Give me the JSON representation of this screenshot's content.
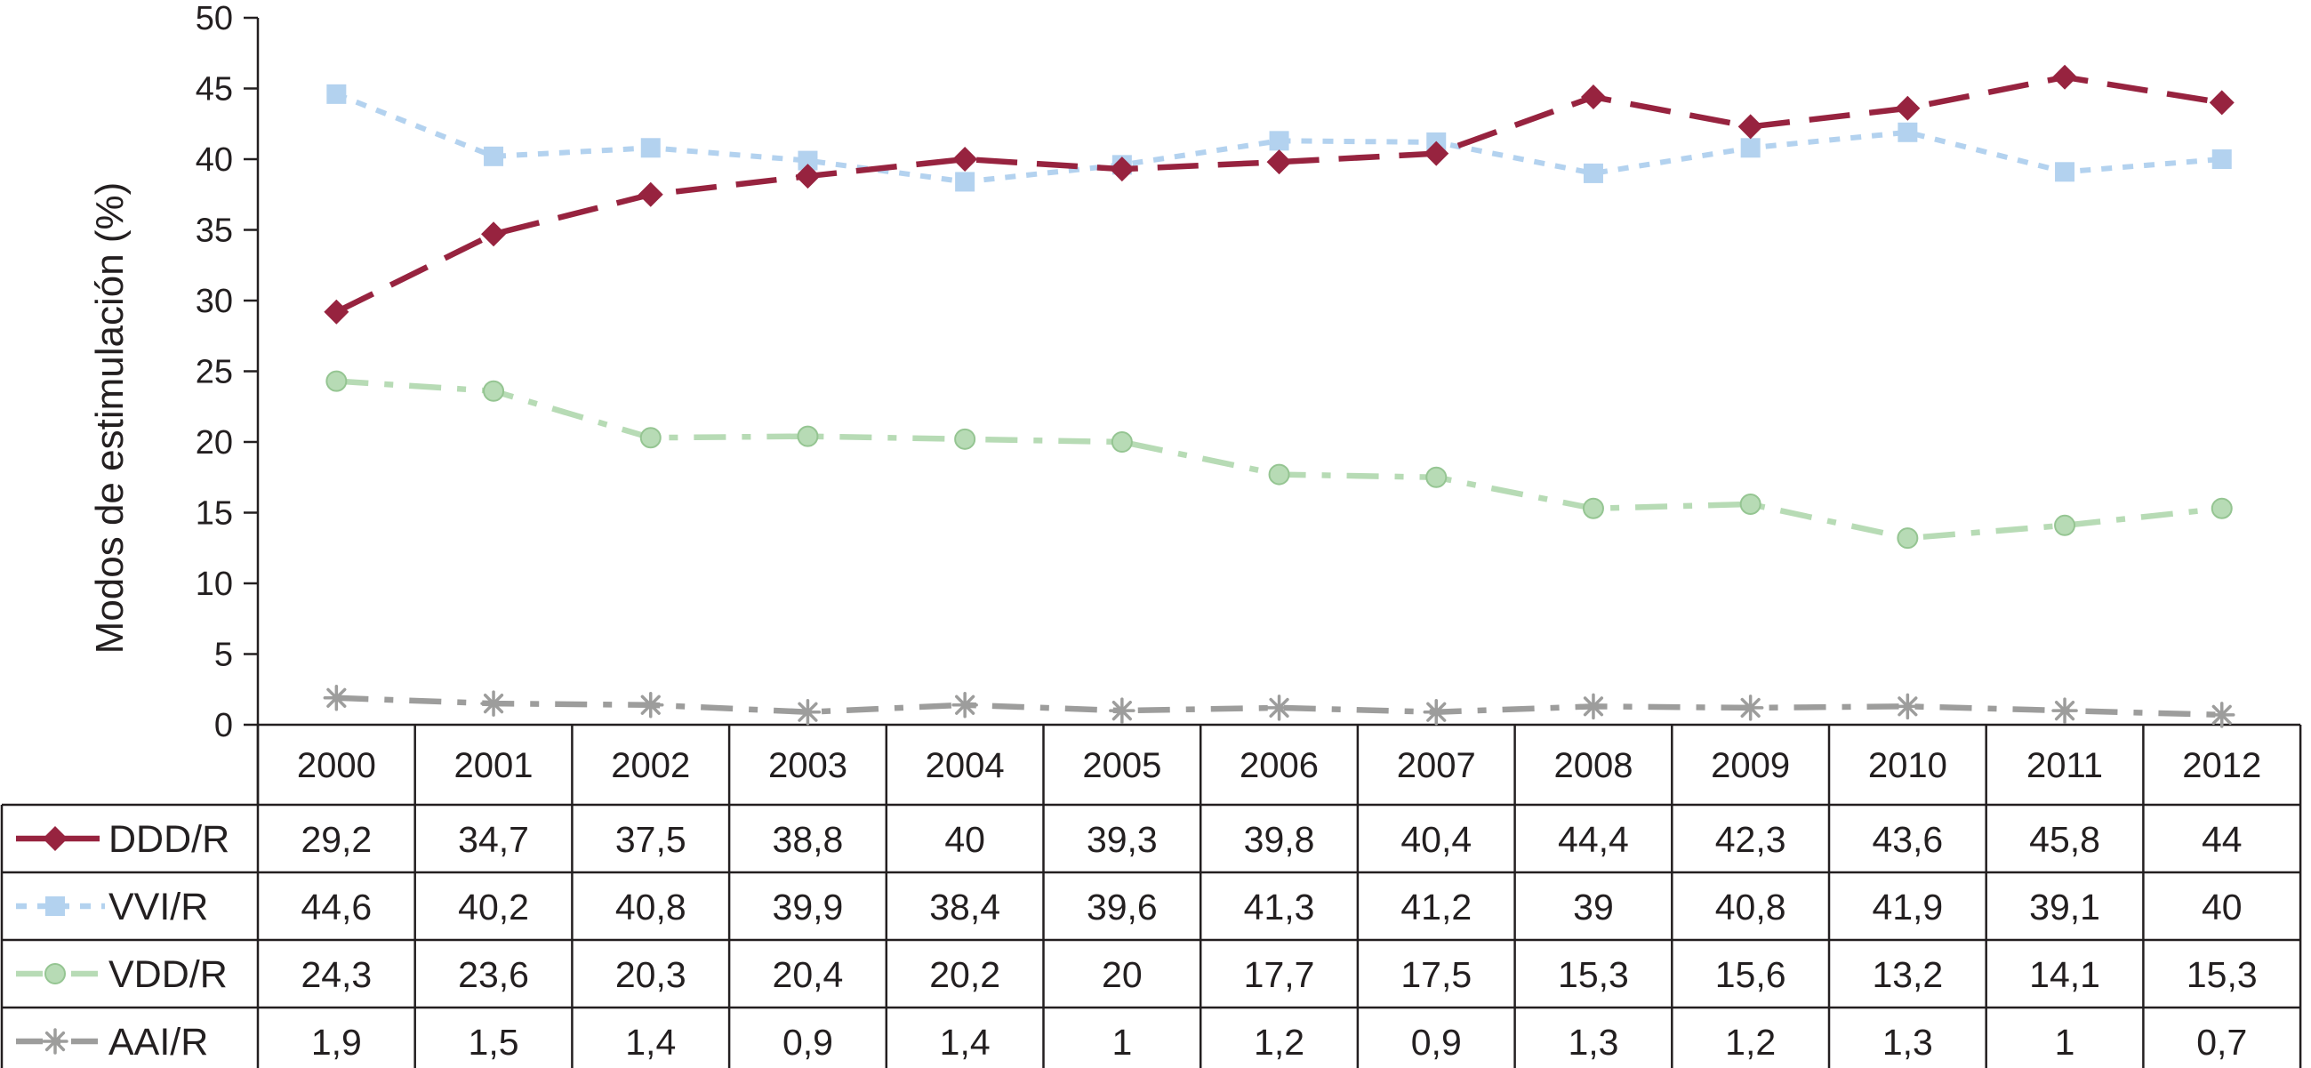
{
  "chart_data": {
    "type": "line",
    "ylabel": "Modos de estimulación (%)",
    "xlabel": "",
    "ylim": [
      0,
      50
    ],
    "yticks": [
      0,
      5,
      10,
      15,
      20,
      25,
      30,
      35,
      40,
      45,
      50
    ],
    "grid": false,
    "legend_placement": "data-table-left",
    "categories": [
      "2000",
      "2001",
      "2002",
      "2003",
      "2004",
      "2005",
      "2006",
      "2007",
      "2008",
      "2009",
      "2010",
      "2011",
      "2012"
    ],
    "series": [
      {
        "name": "DDD/R",
        "color": "#97233f",
        "marker": "diamond",
        "dash": "long-dash",
        "values": [
          29.2,
          34.7,
          37.5,
          38.8,
          40,
          39.3,
          39.8,
          40.4,
          44.4,
          42.3,
          43.6,
          45.8,
          44
        ],
        "labels": [
          "29,2",
          "34,7",
          "37,5",
          "38,8",
          "40",
          "39,3",
          "39,8",
          "40,4",
          "44,4",
          "42,3",
          "43,6",
          "45,8",
          "44"
        ]
      },
      {
        "name": "VVI/R",
        "color": "#b3d2ef",
        "marker": "square",
        "dash": "dotted",
        "values": [
          44.6,
          40.2,
          40.8,
          39.9,
          38.4,
          39.6,
          41.3,
          41.2,
          39,
          40.8,
          41.9,
          39.1,
          40
        ],
        "labels": [
          "44,6",
          "40,2",
          "40,8",
          "39,9",
          "38,4",
          "39,6",
          "41,3",
          "41,2",
          "39",
          "40,8",
          "41,9",
          "39,1",
          "40"
        ]
      },
      {
        "name": "VDD/R",
        "color": "#b7dbb5",
        "marker": "circle",
        "dash": "dash-dot",
        "values": [
          24.3,
          23.6,
          20.3,
          20.4,
          20.2,
          20,
          17.7,
          17.5,
          15.3,
          15.6,
          13.2,
          14.1,
          15.3
        ],
        "labels": [
          "24,3",
          "23,6",
          "20,3",
          "20,4",
          "20,2",
          "20",
          "17,7",
          "17,5",
          "15,3",
          "15,6",
          "13,2",
          "14,1",
          "15,3"
        ]
      },
      {
        "name": "AAI/R",
        "color": "#9d9d9c",
        "marker": "asterisk",
        "dash": "dash-dot",
        "values": [
          1.9,
          1.5,
          1.4,
          0.9,
          1.4,
          1,
          1.2,
          0.9,
          1.3,
          1.2,
          1.3,
          1,
          0.7
        ],
        "labels": [
          "1,9",
          "1,5",
          "1,4",
          "0,9",
          "1,4",
          "1",
          "1,2",
          "0,9",
          "1,3",
          "1,2",
          "1,3",
          "1",
          "0,7"
        ]
      }
    ]
  }
}
